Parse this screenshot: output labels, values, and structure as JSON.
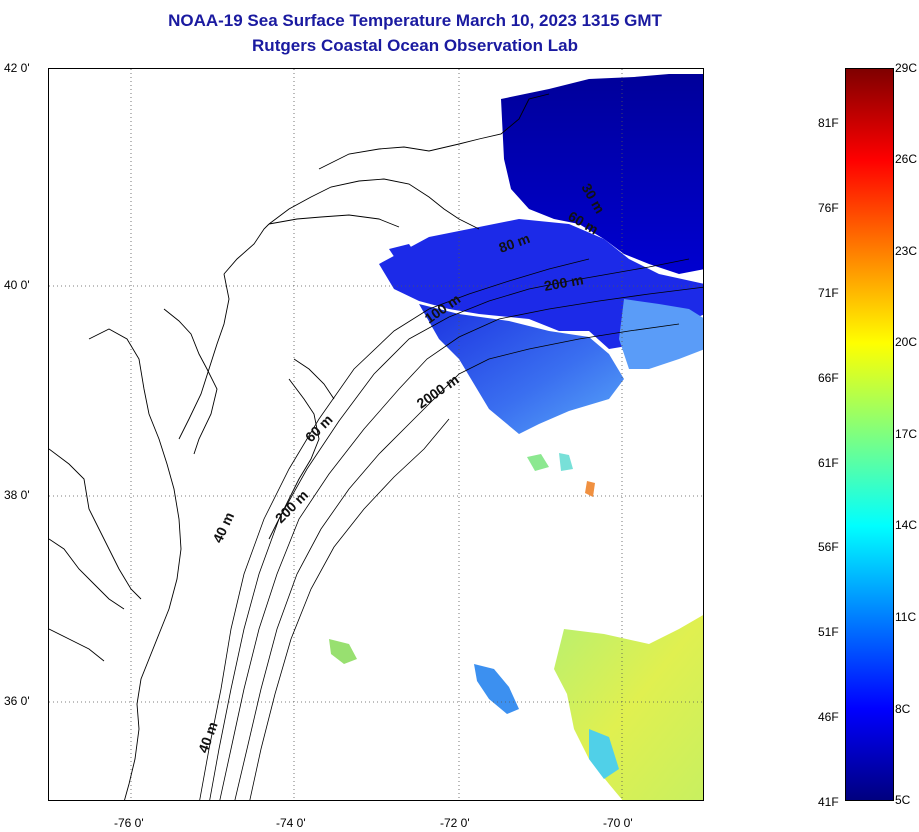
{
  "title": {
    "line1": "NOAA-19 Sea Surface Temperature March 10, 2023 1315 GMT",
    "line2": "Rutgers Coastal Ocean Observation Lab"
  },
  "map": {
    "lat_labels": [
      "42 0'",
      "40 0'",
      "38 0'",
      "36 0'"
    ],
    "lon_labels": [
      "-76 0'",
      "-74 0'",
      "-72 0'",
      "-70 0'"
    ],
    "contour_labels": [
      "30 m",
      "60 m",
      "80 m",
      "200 m",
      "100 m",
      "2000 m",
      "60 m",
      "200 m",
      "40 m",
      "40 m"
    ]
  },
  "colorbar": {
    "fahrenheit": [
      "81F",
      "76F",
      "71F",
      "66F",
      "61F",
      "56F",
      "51F",
      "46F",
      "41F"
    ],
    "celsius": [
      "29C",
      "26C",
      "23C",
      "20C",
      "17C",
      "14C",
      "11C",
      "8C",
      "5C"
    ],
    "colors": [
      "#00007f",
      "#0000ff",
      "#007fff",
      "#00ffff",
      "#7fff7f",
      "#ffff00",
      "#ff7f00",
      "#ff0000",
      "#7f0000"
    ]
  }
}
